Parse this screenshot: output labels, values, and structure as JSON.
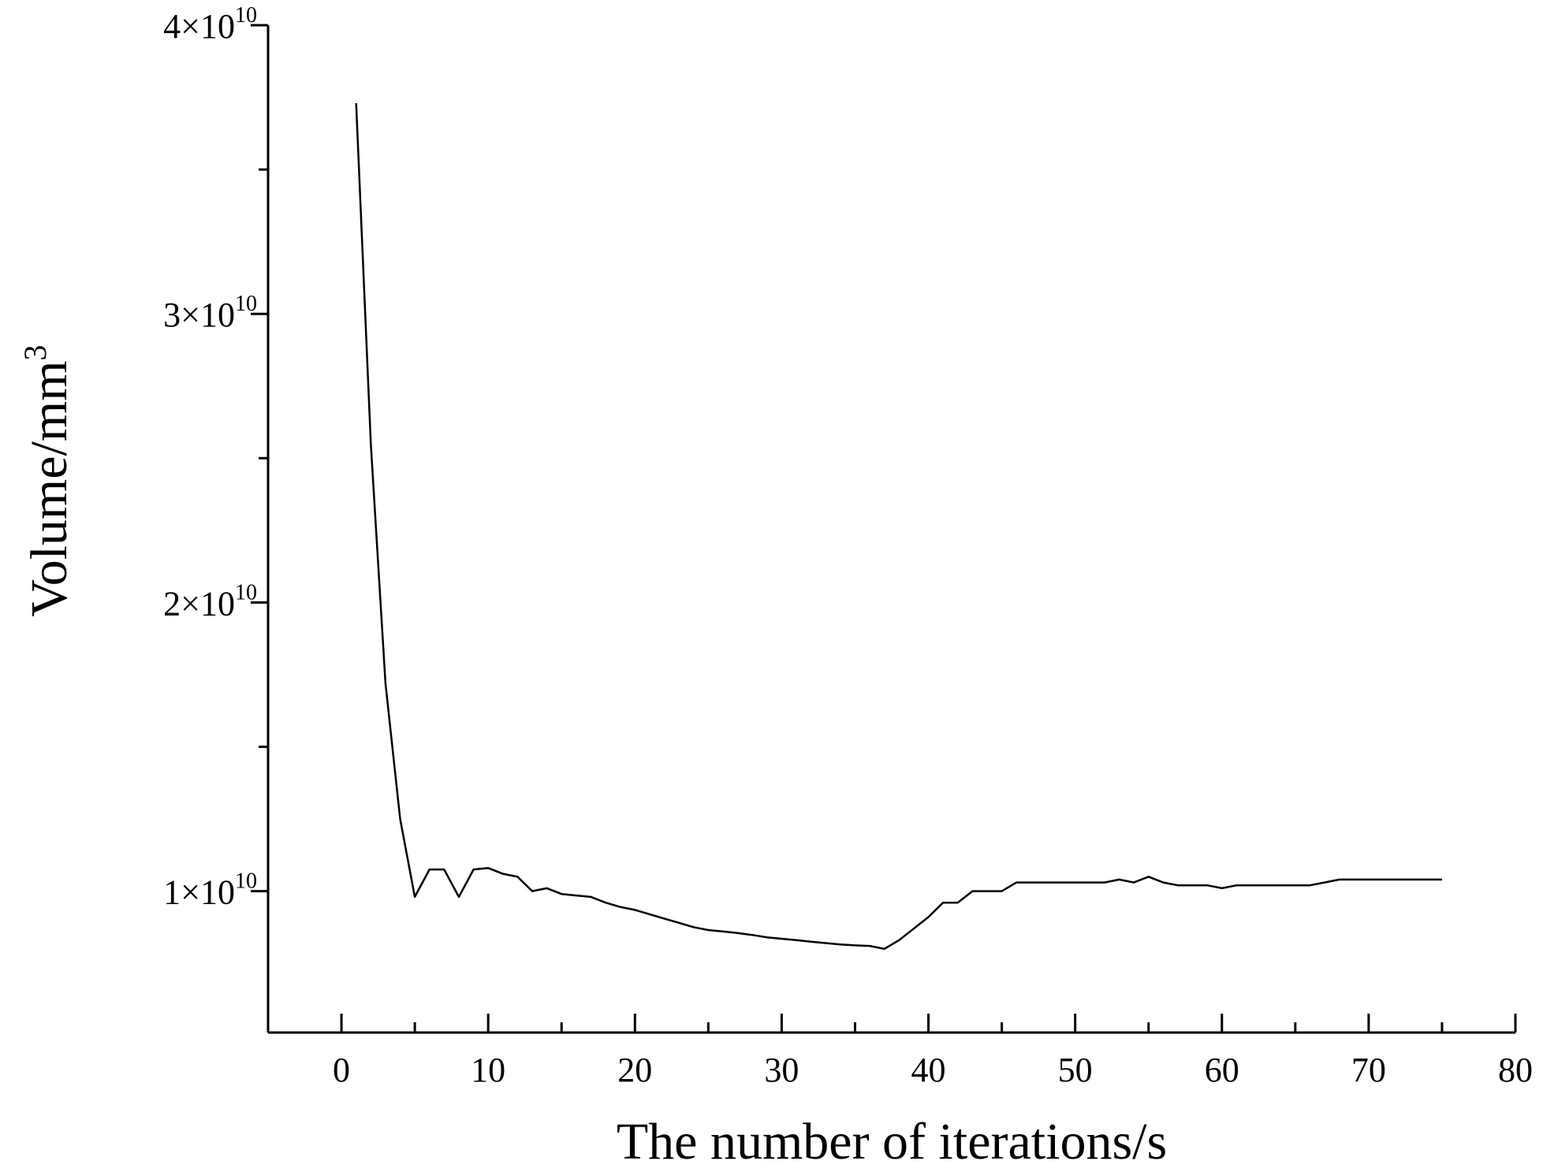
{
  "chart_data": {
    "type": "line",
    "title": "",
    "xlabel": "The number of iterations/s",
    "ylabel": {
      "base": "Volume/mm",
      "sup": "3"
    },
    "xlim": [
      -5,
      80
    ],
    "ylim": [
      5100000000.0,
      40000000000.0
    ],
    "grid": false,
    "legend": "none",
    "line_color": "#000000",
    "x_ticks": [
      0,
      10,
      20,
      30,
      40,
      50,
      60,
      70,
      80
    ],
    "x_tick_labels": [
      "0",
      "10",
      "20",
      "30",
      "40",
      "50",
      "60",
      "70",
      "80"
    ],
    "x_minor_ticks": [
      5,
      15,
      25,
      35,
      45,
      55,
      65,
      75
    ],
    "y_ticks": [
      10000000000.0,
      20000000000.0,
      30000000000.0,
      40000000000.0
    ],
    "y_tick_labels": [
      {
        "mant": "1",
        "times": "×",
        "base": "10",
        "exp": "10"
      },
      {
        "mant": "2",
        "times": "×",
        "base": "10",
        "exp": "10"
      },
      {
        "mant": "3",
        "times": "×",
        "base": "10",
        "exp": "10"
      },
      {
        "mant": "4",
        "times": "×",
        "base": "10",
        "exp": "10"
      }
    ],
    "y_minor_ticks": [
      15000000000.0,
      25000000000.0,
      35000000000.0
    ],
    "series": [
      {
        "x": [
          1,
          2,
          3,
          4,
          5,
          6,
          7,
          8,
          9,
          10,
          11,
          12,
          13,
          14,
          15,
          16,
          17,
          18,
          19,
          20,
          21,
          22,
          23,
          24,
          25,
          26,
          27,
          28,
          29,
          30,
          31,
          32,
          33,
          34,
          35,
          36,
          37,
          38,
          39,
          40,
          41,
          42,
          43,
          44,
          45,
          46,
          47,
          48,
          49,
          50,
          51,
          52,
          53,
          54,
          55,
          56,
          57,
          58,
          59,
          60,
          61,
          62,
          63,
          64,
          65,
          66,
          67,
          68,
          69,
          70,
          71,
          72,
          73,
          74,
          75
        ],
        "y": [
          37300000000.0,
          25500000000.0,
          17200000000.0,
          12500000000.0,
          9800000000.0,
          10750000000.0,
          10750000000.0,
          9800000000.0,
          10750000000.0,
          10800000000.0,
          10600000000.0,
          10500000000.0,
          10000000000.0,
          10100000000.0,
          9900000000.0,
          9850000000.0,
          9800000000.0,
          9600000000.0,
          9450000000.0,
          9350000000.0,
          9200000000.0,
          9050000000.0,
          8900000000.0,
          8750000000.0,
          8650000000.0,
          8600000000.0,
          8550000000.0,
          8480000000.0,
          8400000000.0,
          8350000000.0,
          8300000000.0,
          8250000000.0,
          8200000000.0,
          8150000000.0,
          8120000000.0,
          8100000000.0,
          8000000000.0,
          8300000000.0,
          8700000000.0,
          9100000000.0,
          9600000000.0,
          9600000000.0,
          10000000000.0,
          10000000000.0,
          10000000000.0,
          10300000000.0,
          10300000000.0,
          10300000000.0,
          10300000000.0,
          10300000000.0,
          10300000000.0,
          10300000000.0,
          10400000000.0,
          10300000000.0,
          10500000000.0,
          10300000000.0,
          10200000000.0,
          10200000000.0,
          10200000000.0,
          10100000000.0,
          10200000000.0,
          10200000000.0,
          10200000000.0,
          10200000000.0,
          10200000000.0,
          10200000000.0,
          10300000000.0,
          10400000000.0,
          10400000000.0,
          10400000000.0,
          10400000000.0,
          10400000000.0,
          10400000000.0,
          10400000000.0,
          10400000000.0
        ]
      }
    ]
  }
}
